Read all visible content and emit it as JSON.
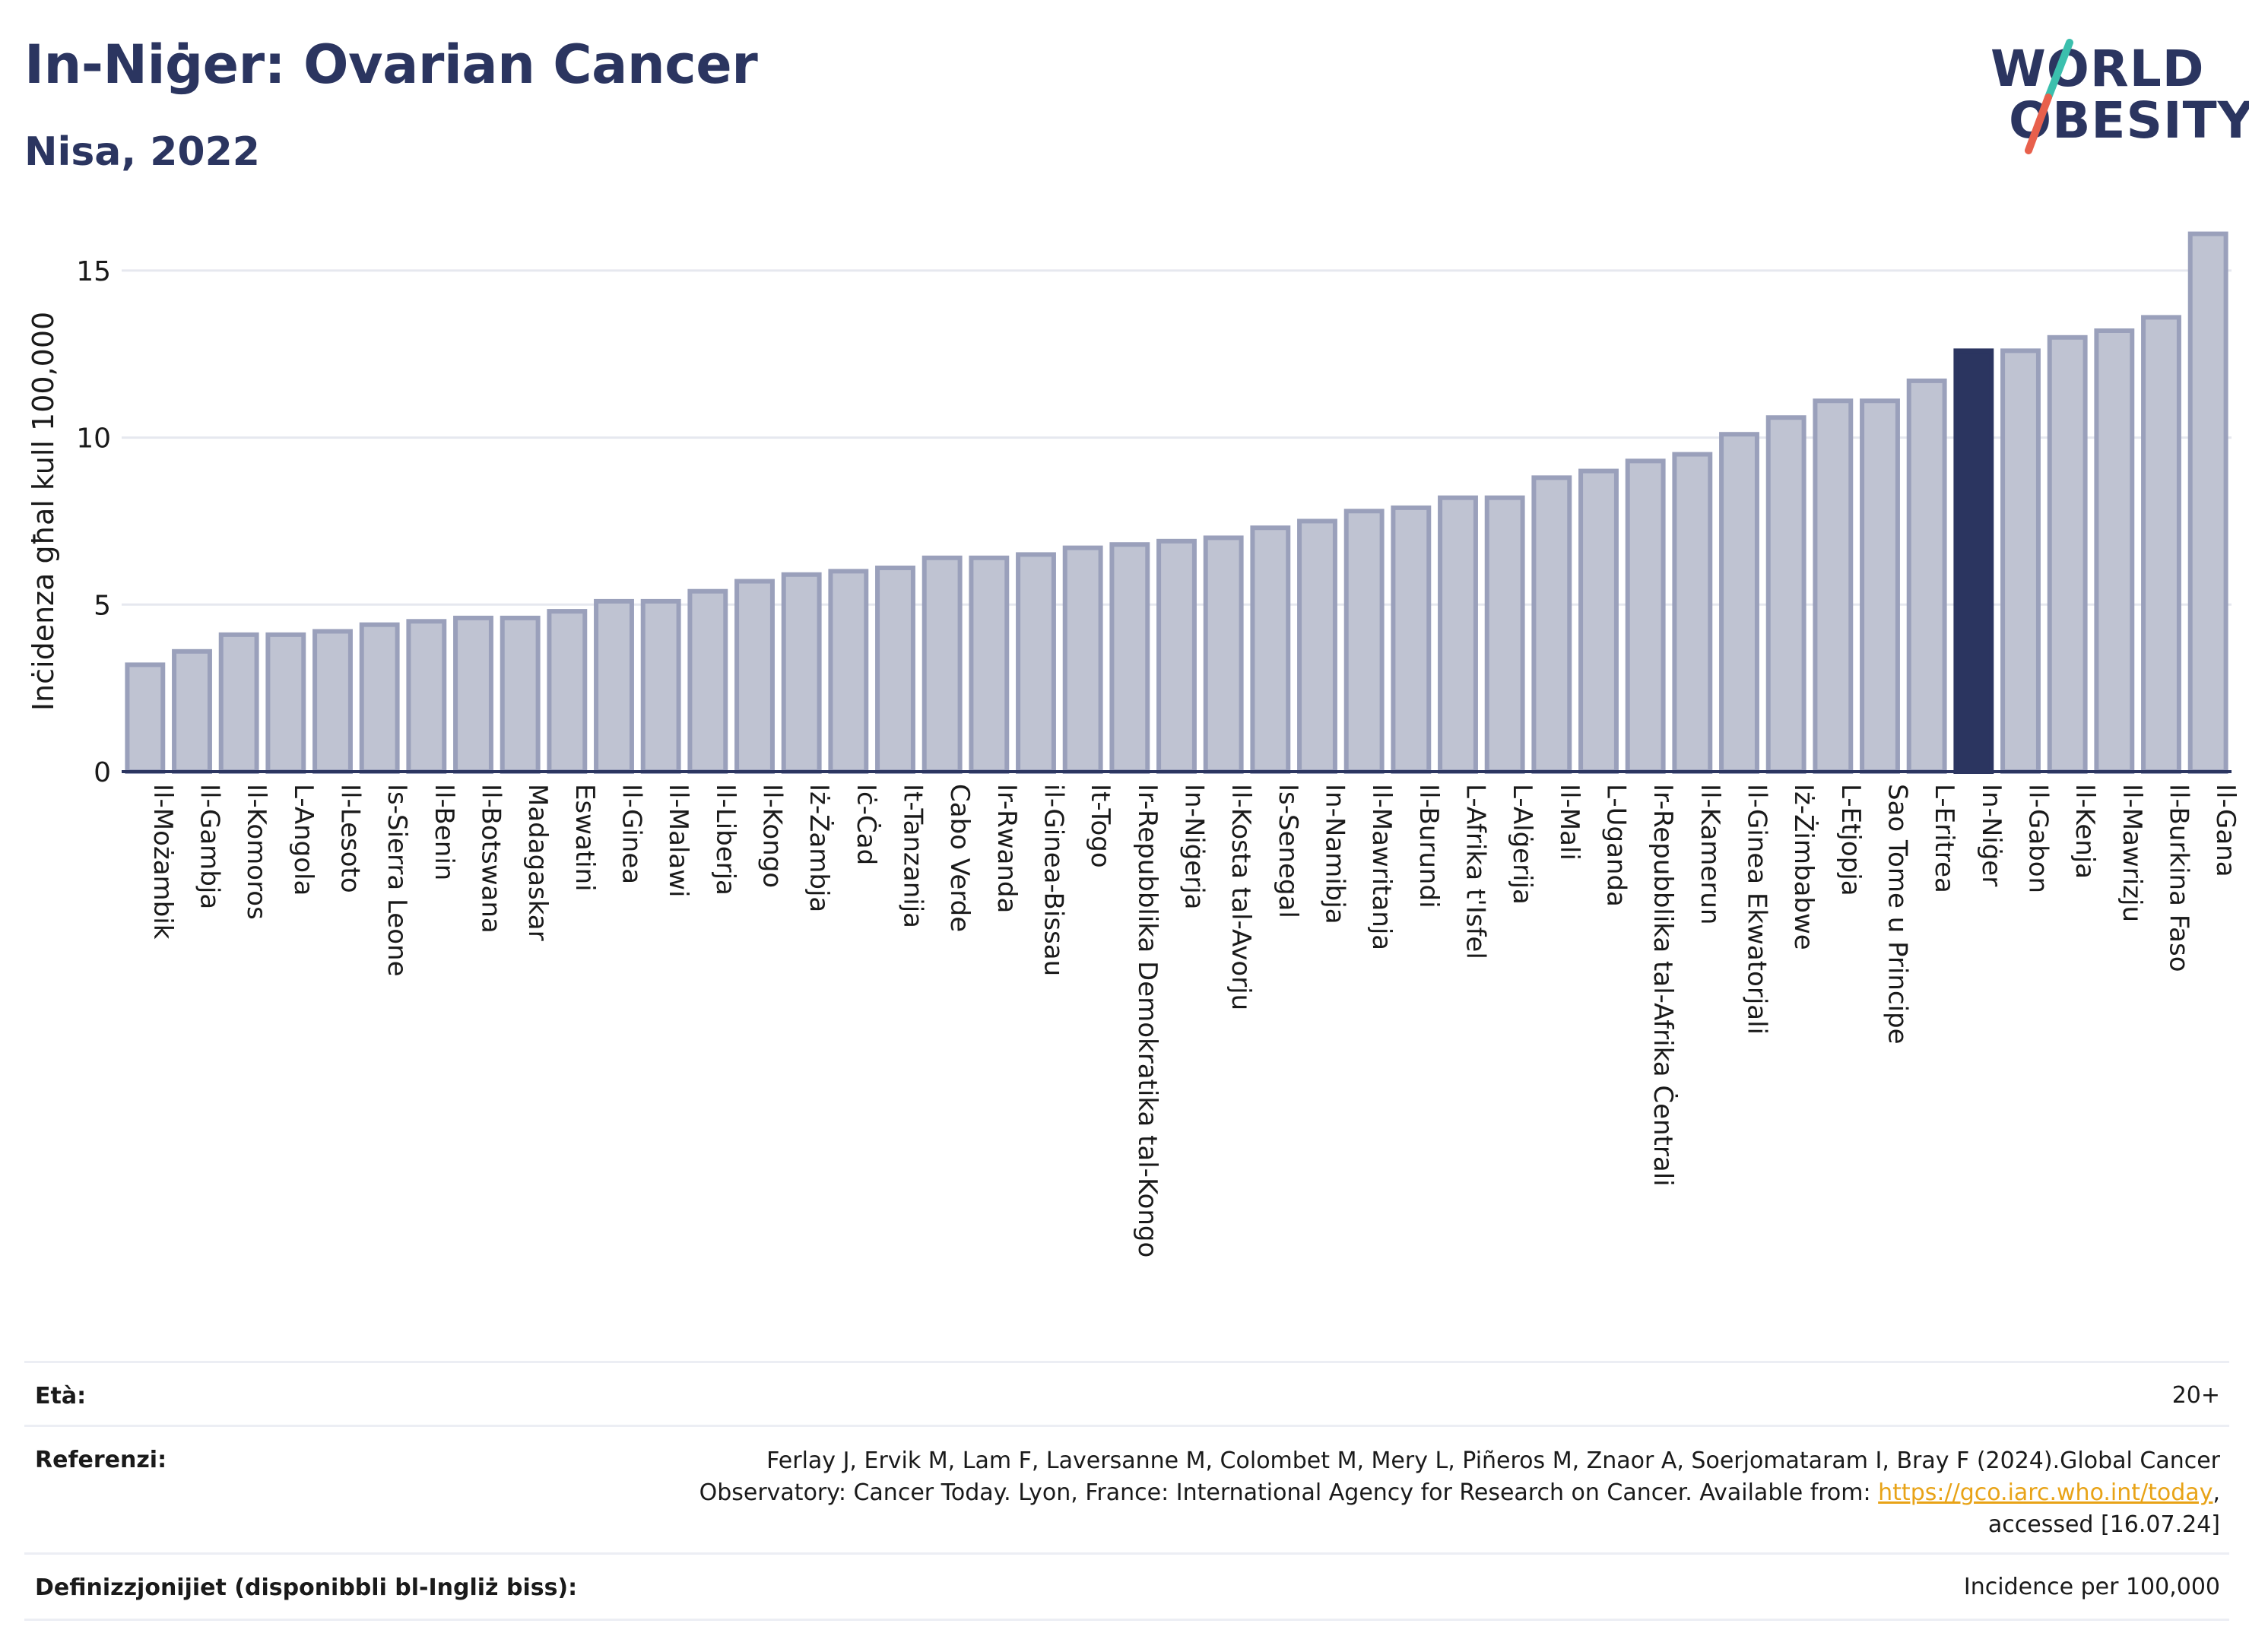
{
  "header": {
    "title": "In-Niġer: Ovarian Cancer",
    "subtitle": "Nisa, 2022"
  },
  "logo": {
    "line1": "WORLD",
    "line2": "OBESITY",
    "colors": {
      "text": "#2b3560",
      "slash_top": "#3bbfad",
      "slash_bottom": "#e8604c"
    }
  },
  "chart_data": {
    "type": "bar",
    "ylabel": "Inċidenza għal kull 100,000",
    "xlabel": "",
    "ylim": [
      0,
      16.5
    ],
    "yticks": [
      0,
      5,
      10,
      15
    ],
    "grid": true,
    "highlight": "In-Niġer",
    "colors": {
      "bar": "#bfc3d2",
      "bar_edge": "#9aa0bb",
      "highlight": "#2b3560",
      "grid": "#e6e8ef",
      "axis": "#2b3560"
    },
    "categories": [
      "Il-Możambik",
      "Il-Gambja",
      "Il-Komoros",
      "L-Angola",
      "Il-Lesoto",
      "Is-Sierra Leone",
      "Il-Benin",
      "Il-Botswana",
      "Madagaskar",
      "Eswatini",
      "Il-Ginea",
      "Il-Malawi",
      "Il-Liberja",
      "Il-Kongo",
      "Iż-Żambja",
      "Iċ-Ċad",
      "It-Tanzanija",
      "Cabo Verde",
      "Ir-Rwanda",
      "il-Ginea-Bissau",
      "It-Togo",
      "Ir-Repubblika Demokratika tal-Kongo",
      "In-Niġerja",
      "Il-Kosta tal-Avorju",
      "Is-Senegal",
      "In-Namibja",
      "Il-Mawritanja",
      "Il-Burundi",
      "L-Afrika t'Isfel",
      "L-Alġerija",
      "Il-Mali",
      "L-Uganda",
      "Ir-Repubblika tal-Afrika Ċentrali",
      "Il-Kamerun",
      "Il-Ginea Ekwatorjali",
      "Iż-Żimbabwe",
      "L-Etjopja",
      "Sao Tome u Principe",
      "L-Eritrea",
      "In-Niġer",
      "Il-Gabon",
      "Il-Kenja",
      "Il-Mawrizju",
      "Il-Burkina Faso",
      "Il-Gana"
    ],
    "values": [
      3.2,
      3.6,
      4.1,
      4.1,
      4.2,
      4.4,
      4.5,
      4.6,
      4.6,
      4.8,
      5.1,
      5.1,
      5.4,
      5.7,
      5.9,
      6.0,
      6.1,
      6.4,
      6.4,
      6.5,
      6.7,
      6.8,
      6.9,
      7.0,
      7.3,
      7.5,
      7.8,
      7.9,
      8.2,
      8.2,
      8.8,
      9.0,
      9.3,
      9.5,
      10.1,
      10.6,
      11.1,
      11.1,
      11.7,
      12.6,
      12.6,
      13.0,
      13.2,
      13.6,
      16.1
    ]
  },
  "info": {
    "age_label": "Età:",
    "age_value": "20+",
    "refs_label": "Referenzi:",
    "refs_line1": "Ferlay J, Ervik M, Lam F, Laversanne M, Colombet M, Mery L, Piñeros M, Znaor A, Soerjomataram I, Bray F (2024).Global Cancer",
    "refs_line2_pre": "Observatory: Cancer Today. Lyon, France: International Agency for Research on Cancer. Available from: ",
    "refs_link": "https://gco.iarc.who.int/today",
    "refs_line2_post": ",",
    "refs_line3": "accessed [16.07.24]",
    "defs_label": "Definizzjonijiet (disponibbli bl-Ingliż biss):",
    "defs_value": "Incidence per 100,000"
  }
}
